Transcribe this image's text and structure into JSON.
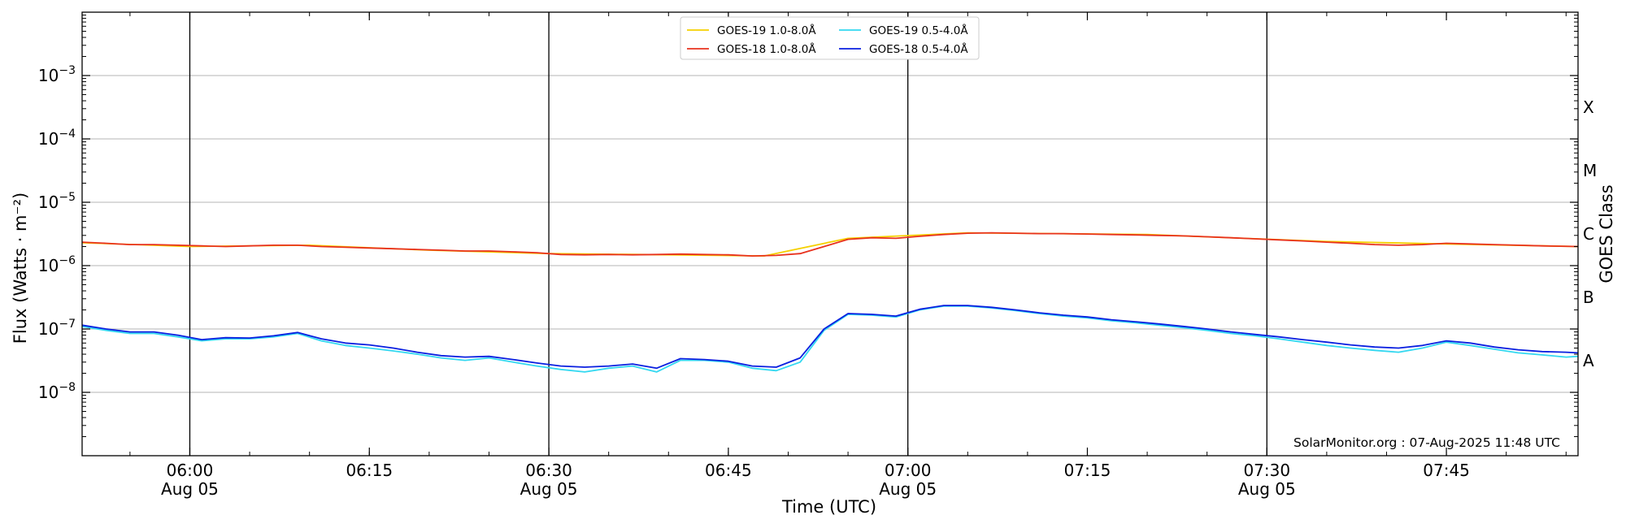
{
  "chart_data": {
    "type": "line",
    "title": "",
    "xlabel": "Time (UTC)",
    "ylabel": "Flux (Watts · m⁻²)",
    "right_label": "GOES Class",
    "x_range": [
      "05:51",
      "07:56"
    ],
    "ylim": [
      1e-09,
      0.01
    ],
    "y_scale": "log",
    "grid": "horizontal at decades",
    "legend_position": "top-center",
    "x_ticks": [
      {
        "time": "06:00",
        "date": "Aug 05"
      },
      {
        "time": "06:15",
        "date": ""
      },
      {
        "time": "06:30",
        "date": "Aug 05"
      },
      {
        "time": "06:45",
        "date": ""
      },
      {
        "time": "07:00",
        "date": "Aug 05"
      },
      {
        "time": "07:15",
        "date": ""
      },
      {
        "time": "07:30",
        "date": "Aug 05"
      },
      {
        "time": "07:45",
        "date": ""
      }
    ],
    "y_ticks": [
      {
        "exp": "-3",
        "value": 0.001
      },
      {
        "exp": "-4",
        "value": 0.0001
      },
      {
        "exp": "-5",
        "value": 1e-05
      },
      {
        "exp": "-6",
        "value": 1e-06
      },
      {
        "exp": "-7",
        "value": 1e-07
      },
      {
        "exp": "-8",
        "value": 1e-08
      }
    ],
    "y_tick_base": "10",
    "day_lines": [
      "06:00",
      "06:30",
      "07:00",
      "07:30"
    ],
    "class_labels": [
      {
        "label": "X",
        "value": 0.000316
      },
      {
        "label": "M",
        "value": 3.16e-05
      },
      {
        "label": "C",
        "value": 3.16e-06
      },
      {
        "label": "B",
        "value": 3.16e-07
      },
      {
        "label": "A",
        "value": 3.16e-08
      }
    ],
    "credit": "SolarMonitor.org : 07-Aug-2025 11:48 UTC",
    "series": [
      {
        "name": "GOES-19 1.0-8.0Å",
        "color": "#f5d000",
        "points": [
          [
            "05:51",
            2.3e-06
          ],
          [
            "06:00",
            2e-06
          ],
          [
            "06:10",
            2.1e-06
          ],
          [
            "06:20",
            1.75e-06
          ],
          [
            "06:30",
            1.55e-06
          ],
          [
            "06:40",
            1.48e-06
          ],
          [
            "06:48",
            1.42e-06
          ],
          [
            "06:55",
            2.7e-06
          ],
          [
            "07:05",
            3.3e-06
          ],
          [
            "07:20",
            3.1e-06
          ],
          [
            "07:35",
            2.4e-06
          ],
          [
            "07:45",
            2.2e-06
          ],
          [
            "07:56",
            2e-06
          ]
        ]
      },
      {
        "name": "GOES-18 1.0-8.0Å",
        "color": "#e8321e",
        "points": [
          [
            "05:51",
            2.35e-06
          ],
          [
            "05:53",
            2.25e-06
          ],
          [
            "05:55",
            2.15e-06
          ],
          [
            "05:57",
            2.15e-06
          ],
          [
            "05:59",
            2.1e-06
          ],
          [
            "06:01",
            2.05e-06
          ],
          [
            "06:03",
            2e-06
          ],
          [
            "06:05",
            2.05e-06
          ],
          [
            "06:07",
            2.1e-06
          ],
          [
            "06:09",
            2.1e-06
          ],
          [
            "06:11",
            2e-06
          ],
          [
            "06:13",
            1.95e-06
          ],
          [
            "06:15",
            1.9e-06
          ],
          [
            "06:17",
            1.85e-06
          ],
          [
            "06:19",
            1.8e-06
          ],
          [
            "06:21",
            1.75e-06
          ],
          [
            "06:23",
            1.7e-06
          ],
          [
            "06:25",
            1.7e-06
          ],
          [
            "06:27",
            1.65e-06
          ],
          [
            "06:29",
            1.6e-06
          ],
          [
            "06:31",
            1.5e-06
          ],
          [
            "06:33",
            1.48e-06
          ],
          [
            "06:35",
            1.5e-06
          ],
          [
            "06:37",
            1.48e-06
          ],
          [
            "06:39",
            1.5e-06
          ],
          [
            "06:41",
            1.52e-06
          ],
          [
            "06:43",
            1.5e-06
          ],
          [
            "06:45",
            1.48e-06
          ],
          [
            "06:47",
            1.42e-06
          ],
          [
            "06:49",
            1.45e-06
          ],
          [
            "06:51",
            1.55e-06
          ],
          [
            "06:53",
            2e-06
          ],
          [
            "06:55",
            2.6e-06
          ],
          [
            "06:57",
            2.75e-06
          ],
          [
            "06:59",
            2.7e-06
          ],
          [
            "07:01",
            2.9e-06
          ],
          [
            "07:03",
            3.1e-06
          ],
          [
            "07:05",
            3.25e-06
          ],
          [
            "07:07",
            3.3e-06
          ],
          [
            "07:09",
            3.25e-06
          ],
          [
            "07:11",
            3.2e-06
          ],
          [
            "07:13",
            3.2e-06
          ],
          [
            "07:15",
            3.15e-06
          ],
          [
            "07:17",
            3.1e-06
          ],
          [
            "07:19",
            3.05e-06
          ],
          [
            "07:21",
            3e-06
          ],
          [
            "07:23",
            2.95e-06
          ],
          [
            "07:25",
            2.85e-06
          ],
          [
            "07:27",
            2.75e-06
          ],
          [
            "07:29",
            2.65e-06
          ],
          [
            "07:31",
            2.55e-06
          ],
          [
            "07:33",
            2.45e-06
          ],
          [
            "07:35",
            2.35e-06
          ],
          [
            "07:37",
            2.25e-06
          ],
          [
            "07:39",
            2.15e-06
          ],
          [
            "07:41",
            2.1e-06
          ],
          [
            "07:43",
            2.15e-06
          ],
          [
            "07:45",
            2.25e-06
          ],
          [
            "07:47",
            2.2e-06
          ],
          [
            "07:49",
            2.15e-06
          ],
          [
            "07:51",
            2.1e-06
          ],
          [
            "07:53",
            2.05e-06
          ],
          [
            "07:56",
            2e-06
          ]
        ]
      },
      {
        "name": "GOES-19 0.5-4.0Å",
        "color": "#33d8f0",
        "points": [
          [
            "05:51",
            1.1e-07
          ],
          [
            "05:53",
            9.5e-08
          ],
          [
            "05:55",
            8.5e-08
          ],
          [
            "05:57",
            8.5e-08
          ],
          [
            "05:59",
            7.5e-08
          ],
          [
            "06:01",
            6.5e-08
          ],
          [
            "06:03",
            7e-08
          ],
          [
            "06:05",
            7e-08
          ],
          [
            "06:07",
            7.5e-08
          ],
          [
            "06:09",
            8.5e-08
          ],
          [
            "06:11",
            6.5e-08
          ],
          [
            "06:13",
            5.5e-08
          ],
          [
            "06:15",
            5e-08
          ],
          [
            "06:17",
            4.5e-08
          ],
          [
            "06:19",
            4e-08
          ],
          [
            "06:21",
            3.5e-08
          ],
          [
            "06:23",
            3.2e-08
          ],
          [
            "06:25",
            3.5e-08
          ],
          [
            "06:27",
            3e-08
          ],
          [
            "06:29",
            2.6e-08
          ],
          [
            "06:31",
            2.3e-08
          ],
          [
            "06:33",
            2.1e-08
          ],
          [
            "06:35",
            2.4e-08
          ],
          [
            "06:37",
            2.6e-08
          ],
          [
            "06:39",
            2.1e-08
          ],
          [
            "06:41",
            3.2e-08
          ],
          [
            "06:43",
            3.2e-08
          ],
          [
            "06:45",
            3e-08
          ],
          [
            "06:47",
            2.4e-08
          ],
          [
            "06:49",
            2.2e-08
          ],
          [
            "06:51",
            3e-08
          ],
          [
            "06:53",
            9.5e-08
          ],
          [
            "06:55",
            1.7e-07
          ],
          [
            "06:57",
            1.65e-07
          ],
          [
            "06:59",
            1.55e-07
          ],
          [
            "07:01",
            2e-07
          ],
          [
            "07:03",
            2.3e-07
          ],
          [
            "07:05",
            2.3e-07
          ],
          [
            "07:07",
            2.15e-07
          ],
          [
            "07:09",
            1.95e-07
          ],
          [
            "07:11",
            1.75e-07
          ],
          [
            "07:13",
            1.6e-07
          ],
          [
            "07:15",
            1.5e-07
          ],
          [
            "07:17",
            1.35e-07
          ],
          [
            "07:19",
            1.25e-07
          ],
          [
            "07:21",
            1.15e-07
          ],
          [
            "07:23",
            1.05e-07
          ],
          [
            "07:25",
            9.5e-08
          ],
          [
            "07:27",
            8.5e-08
          ],
          [
            "07:29",
            7.8e-08
          ],
          [
            "07:31",
            7e-08
          ],
          [
            "07:33",
            6.2e-08
          ],
          [
            "07:35",
            5.5e-08
          ],
          [
            "07:37",
            5e-08
          ],
          [
            "07:39",
            4.6e-08
          ],
          [
            "07:41",
            4.3e-08
          ],
          [
            "07:43",
            5e-08
          ],
          [
            "07:45",
            6.2e-08
          ],
          [
            "07:47",
            5.5e-08
          ],
          [
            "07:49",
            4.8e-08
          ],
          [
            "07:51",
            4.2e-08
          ],
          [
            "07:53",
            3.9e-08
          ],
          [
            "07:55",
            3.6e-08
          ],
          [
            "07:56",
            3.7e-08
          ]
        ]
      },
      {
        "name": "GOES-18 0.5-4.0Å",
        "color": "#0a1fe0",
        "points": [
          [
            "05:51",
            1.15e-07
          ],
          [
            "05:53",
            1e-07
          ],
          [
            "05:55",
            9e-08
          ],
          [
            "05:57",
            9e-08
          ],
          [
            "05:59",
            8e-08
          ],
          [
            "06:01",
            6.8e-08
          ],
          [
            "06:03",
            7.3e-08
          ],
          [
            "06:05",
            7.2e-08
          ],
          [
            "06:07",
            7.8e-08
          ],
          [
            "06:09",
            8.8e-08
          ],
          [
            "06:11",
            7e-08
          ],
          [
            "06:13",
            6e-08
          ],
          [
            "06:15",
            5.6e-08
          ],
          [
            "06:17",
            5e-08
          ],
          [
            "06:19",
            4.3e-08
          ],
          [
            "06:21",
            3.8e-08
          ],
          [
            "06:23",
            3.6e-08
          ],
          [
            "06:25",
            3.7e-08
          ],
          [
            "06:27",
            3.3e-08
          ],
          [
            "06:29",
            2.9e-08
          ],
          [
            "06:31",
            2.6e-08
          ],
          [
            "06:33",
            2.5e-08
          ],
          [
            "06:35",
            2.6e-08
          ],
          [
            "06:37",
            2.8e-08
          ],
          [
            "06:39",
            2.4e-08
          ],
          [
            "06:41",
            3.4e-08
          ],
          [
            "06:43",
            3.3e-08
          ],
          [
            "06:45",
            3.1e-08
          ],
          [
            "06:47",
            2.6e-08
          ],
          [
            "06:49",
            2.5e-08
          ],
          [
            "06:51",
            3.5e-08
          ],
          [
            "06:53",
            1e-07
          ],
          [
            "06:55",
            1.75e-07
          ],
          [
            "06:57",
            1.7e-07
          ],
          [
            "06:59",
            1.6e-07
          ],
          [
            "07:01",
            2.05e-07
          ],
          [
            "07:03",
            2.35e-07
          ],
          [
            "07:05",
            2.35e-07
          ],
          [
            "07:07",
            2.2e-07
          ],
          [
            "07:09",
            2e-07
          ],
          [
            "07:11",
            1.8e-07
          ],
          [
            "07:13",
            1.65e-07
          ],
          [
            "07:15",
            1.55e-07
          ],
          [
            "07:17",
            1.4e-07
          ],
          [
            "07:19",
            1.3e-07
          ],
          [
            "07:21",
            1.2e-07
          ],
          [
            "07:23",
            1.1e-07
          ],
          [
            "07:25",
            1e-07
          ],
          [
            "07:27",
            9e-08
          ],
          [
            "07:29",
            8.2e-08
          ],
          [
            "07:31",
            7.5e-08
          ],
          [
            "07:33",
            6.8e-08
          ],
          [
            "07:35",
            6.2e-08
          ],
          [
            "07:37",
            5.6e-08
          ],
          [
            "07:39",
            5.2e-08
          ],
          [
            "07:41",
            5e-08
          ],
          [
            "07:43",
            5.5e-08
          ],
          [
            "07:45",
            6.5e-08
          ],
          [
            "07:47",
            6e-08
          ],
          [
            "07:49",
            5.2e-08
          ],
          [
            "07:51",
            4.7e-08
          ],
          [
            "07:53",
            4.4e-08
          ],
          [
            "07:55",
            4.3e-08
          ],
          [
            "07:56",
            4.2e-08
          ]
        ]
      }
    ]
  }
}
